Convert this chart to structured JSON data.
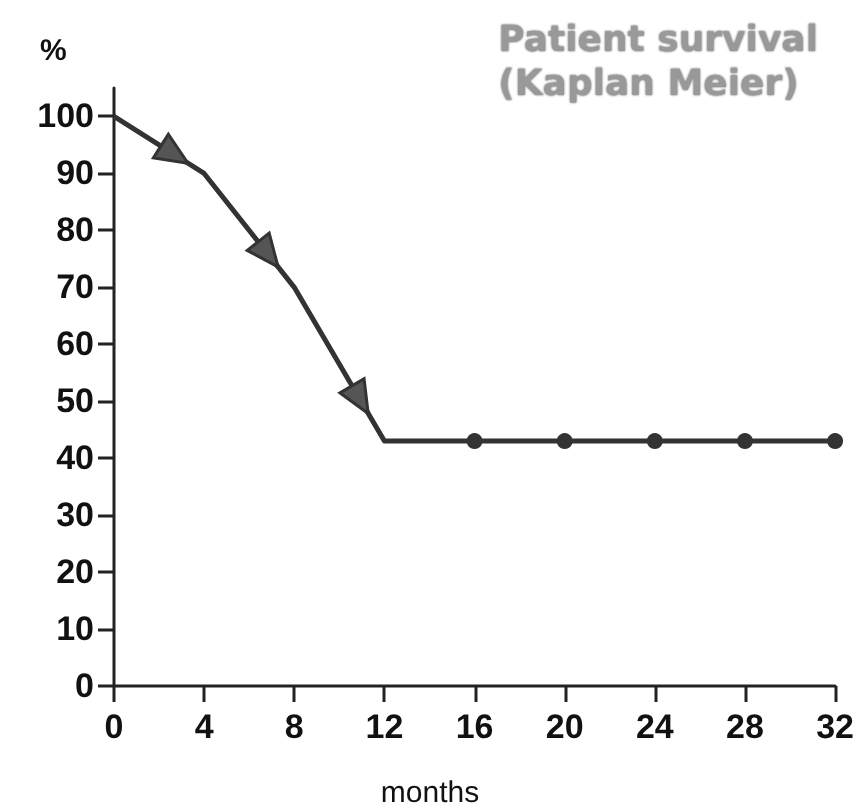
{
  "chart_data": {
    "type": "line",
    "title": "Patient survival\n(Kaplan Meier)",
    "xlabel": "months",
    "ylabel": "%",
    "xlim": [
      0,
      32
    ],
    "xticks": [
      0,
      4,
      8,
      12,
      16,
      20,
      24,
      28,
      32
    ],
    "ylim": [
      0,
      105
    ],
    "yticks": [
      0,
      10,
      20,
      30,
      40,
      50,
      60,
      70,
      80,
      90,
      100
    ],
    "grid": false,
    "series": [
      {
        "color": "#333333",
        "x": [
          0,
          4,
          8,
          12,
          16
        ],
        "values": [
          100,
          90,
          70,
          43,
          43
        ],
        "marker": "none"
      },
      {
        "color": "#333333",
        "x": [
          16,
          20,
          24,
          28,
          32
        ],
        "values": [
          43,
          43,
          43,
          43,
          43
        ],
        "marker": "circle"
      }
    ]
  }
}
